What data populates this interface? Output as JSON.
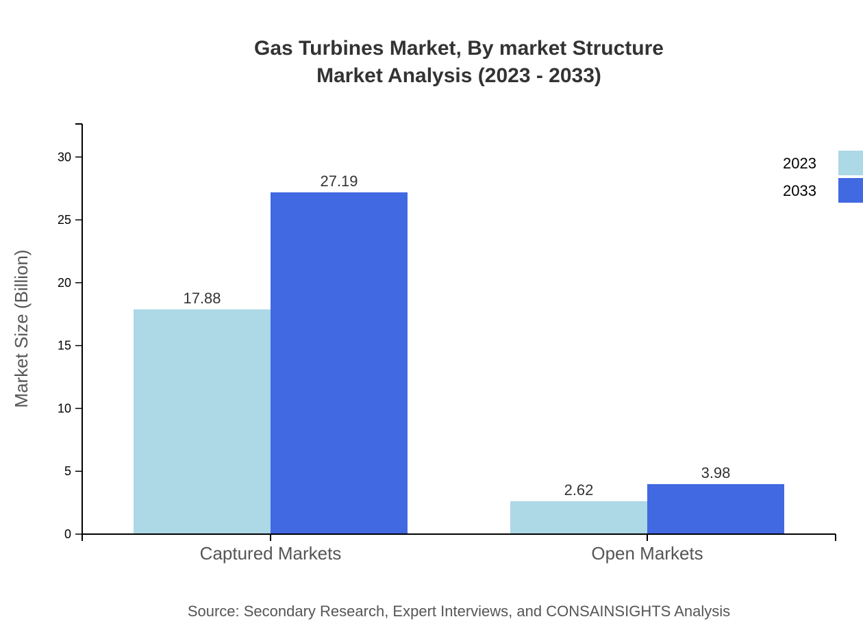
{
  "chart_data": {
    "type": "bar",
    "title": [
      "Gas Turbines Market, By market Structure",
      "Market Analysis (2023 - 2033)"
    ],
    "xlabel": "",
    "ylabel": "Market Size (Billion)",
    "categories": [
      "Captured Markets",
      "Open Markets"
    ],
    "series": [
      {
        "name": "2023",
        "values": [
          17.88,
          2.62
        ],
        "color": "#ADD8E6"
      },
      {
        "name": "2033",
        "values": [
          27.19,
          3.98
        ],
        "color": "#4169E1"
      }
    ],
    "data_labels": [
      [
        "17.88",
        "2.62"
      ],
      [
        "27.19",
        "3.98"
      ]
    ],
    "ylim": [
      0,
      32.63
    ],
    "yticks": [
      0,
      5,
      10,
      15,
      20,
      25,
      30
    ],
    "grid": false,
    "legend": "top-right",
    "source": "Source: Secondary Research, Expert Interviews, and CONSAINSIGHTS Analysis"
  }
}
